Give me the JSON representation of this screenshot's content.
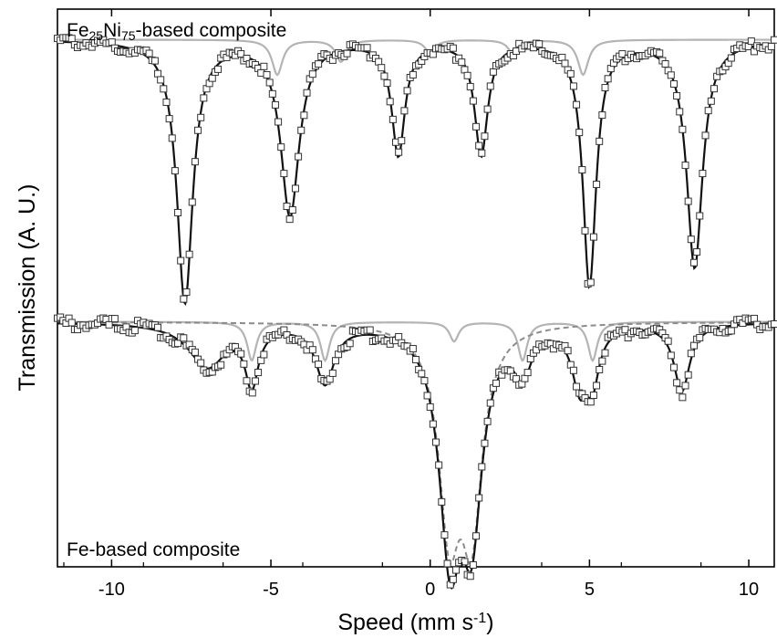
{
  "chart_data": {
    "type": "scatter",
    "xlabel_base": "Speed (mm s",
    "xlabel_exp": "-1",
    "xlabel_close": ")",
    "ylabel": "Transmission (A. U.)",
    "xlim": [
      -11.7,
      10.8
    ],
    "xticks": [
      -10,
      -5,
      0,
      5,
      10
    ],
    "xtick_labels": [
      "-10",
      "-5",
      "0",
      "5",
      "10"
    ],
    "colors": {
      "fit": "#111111",
      "subspectrum": "#b4b4b4",
      "doublet": "#8c8c8c",
      "marker": "#333333"
    },
    "panels": [
      {
        "id": "top",
        "label_parts": [
          {
            "t": "Fe",
            "sub": false
          },
          {
            "t": "25",
            "sub": true
          },
          {
            "t": "Ni",
            "sub": false
          },
          {
            "t": "75",
            "sub": true
          },
          {
            "t": "-based composite",
            "sub": false
          }
        ],
        "baseline": 1.0,
        "ylim": [
          0.69,
          1.035
        ],
        "lines": [
          {
            "pos": -7.7,
            "depth": 0.3,
            "width": 0.6
          },
          {
            "pos": -4.4,
            "depth": 0.2,
            "width": 0.7
          },
          {
            "pos": -1.0,
            "depth": 0.13,
            "width": 0.5
          },
          {
            "pos": 1.6,
            "depth": 0.13,
            "width": 0.5
          },
          {
            "pos": 5.0,
            "depth": 0.28,
            "width": 0.5
          },
          {
            "pos": 8.3,
            "depth": 0.26,
            "width": 0.6
          }
        ],
        "minor_lines": [
          {
            "pos": -4.8,
            "depth": 0.04,
            "width": 0.4
          },
          {
            "pos": -2.8,
            "depth": 0.025,
            "width": 0.4
          },
          {
            "pos": 0.0,
            "depth": 0.015,
            "width": 0.4
          },
          {
            "pos": 2.6,
            "depth": 0.015,
            "width": 0.4
          },
          {
            "pos": 4.8,
            "depth": 0.04,
            "width": 0.4
          }
        ]
      },
      {
        "id": "bottom",
        "label_parts": [
          {
            "t": "Fe-based composite",
            "sub": false
          }
        ],
        "baseline": 1.0,
        "ylim": [
          0.745,
          1.012
        ],
        "lines": [
          {
            "pos": -7.0,
            "depth": 0.045,
            "width": 1.4
          },
          {
            "pos": -5.6,
            "depth": 0.06,
            "width": 0.5
          },
          {
            "pos": -3.3,
            "depth": 0.06,
            "width": 0.7
          },
          {
            "pos": 0.75,
            "depth": 0.025,
            "width": 0.6
          },
          {
            "pos": 2.9,
            "depth": 0.045,
            "width": 0.6
          },
          {
            "pos": 4.7,
            "depth": 0.06,
            "width": 0.6
          },
          {
            "pos": 5.1,
            "depth": 0.05,
            "width": 0.5
          },
          {
            "pos": 7.9,
            "depth": 0.07,
            "width": 0.6
          }
        ],
        "minor_lines": [
          {
            "pos": -5.6,
            "depth": 0.04,
            "width": 0.35
          },
          {
            "pos": -3.3,
            "depth": 0.04,
            "width": 0.35
          },
          {
            "pos": 0.75,
            "depth": 0.02,
            "width": 0.35
          },
          {
            "pos": 2.9,
            "depth": 0.04,
            "width": 0.35
          },
          {
            "pos": 5.1,
            "depth": 0.04,
            "width": 0.35
          }
        ],
        "doublet_lines": [
          {
            "pos": 0.6,
            "depth": 0.2,
            "width": 0.8
          },
          {
            "pos": 1.3,
            "depth": 0.2,
            "width": 0.8
          }
        ]
      }
    ]
  }
}
